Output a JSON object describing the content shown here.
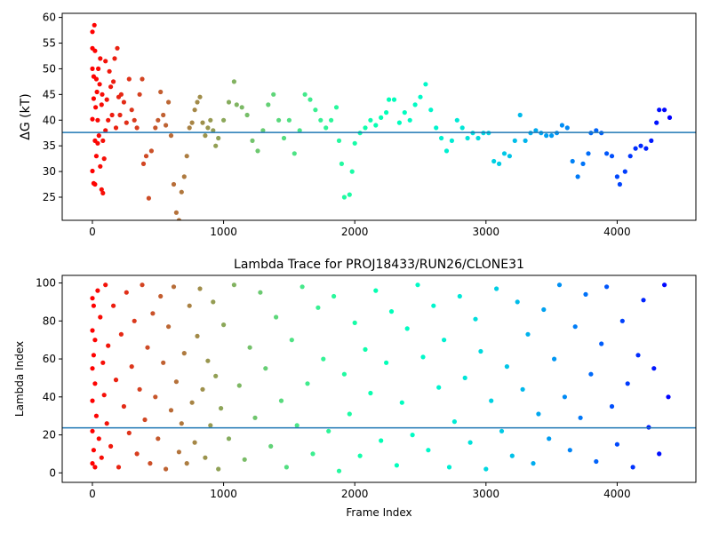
{
  "chart_data": [
    {
      "type": "scatter",
      "title": "",
      "xlabel": "",
      "ylabel": "ΔG (kT)",
      "xlim": [
        -230,
        4600
      ],
      "ylim": [
        20.5,
        60.8
      ],
      "xticks": [
        0,
        1000,
        2000,
        3000,
        4000
      ],
      "yticks": [
        25,
        30,
        35,
        40,
        45,
        50,
        55,
        60
      ],
      "hline": 37.6,
      "hline_color": "#1f77b4",
      "colormap": "rainbow (frame 0 red → frame 4400 violet)",
      "points": [
        [
          0,
          30.1
        ],
        [
          0,
          40.2
        ],
        [
          0,
          50.0
        ],
        [
          0,
          54.0
        ],
        [
          0,
          57.2
        ],
        [
          10,
          27.7
        ],
        [
          10,
          44.2
        ],
        [
          10,
          48.5
        ],
        [
          15,
          58.5
        ],
        [
          20,
          27.5
        ],
        [
          20,
          36.0
        ],
        [
          20,
          53.5
        ],
        [
          25,
          42.5
        ],
        [
          30,
          33.0
        ],
        [
          30,
          48.0
        ],
        [
          35,
          45.5
        ],
        [
          40,
          35.5
        ],
        [
          40,
          40.0
        ],
        [
          45,
          50.0
        ],
        [
          50,
          37.0
        ],
        [
          55,
          47.0
        ],
        [
          60,
          52.0
        ],
        [
          60,
          31.0
        ],
        [
          70,
          43.0
        ],
        [
          70,
          26.5
        ],
        [
          75,
          45.0
        ],
        [
          80,
          25.8
        ],
        [
          80,
          36.0
        ],
        [
          90,
          32.5
        ],
        [
          100,
          38.0
        ],
        [
          100,
          51.5
        ],
        [
          110,
          44.0
        ],
        [
          120,
          40.0
        ],
        [
          130,
          49.5
        ],
        [
          140,
          46.5
        ],
        [
          150,
          41.0
        ],
        [
          160,
          47.5
        ],
        [
          170,
          52.0
        ],
        [
          180,
          38.5
        ],
        [
          190,
          54.0
        ],
        [
          200,
          44.5
        ],
        [
          210,
          41.0
        ],
        [
          220,
          45.0
        ],
        [
          240,
          43.5
        ],
        [
          260,
          39.5
        ],
        [
          280,
          48.0
        ],
        [
          300,
          42.0
        ],
        [
          320,
          40.0
        ],
        [
          340,
          38.5
        ],
        [
          360,
          45.0
        ],
        [
          380,
          48.0
        ],
        [
          390,
          31.5
        ],
        [
          410,
          33.0
        ],
        [
          430,
          24.8
        ],
        [
          450,
          34.0
        ],
        [
          480,
          38.5
        ],
        [
          500,
          40.0
        ],
        [
          520,
          45.5
        ],
        [
          540,
          41.0
        ],
        [
          560,
          39.0
        ],
        [
          580,
          43.5
        ],
        [
          600,
          37.0
        ],
        [
          620,
          27.5
        ],
        [
          640,
          22.0
        ],
        [
          660,
          20.5
        ],
        [
          680,
          26.0
        ],
        [
          700,
          29.0
        ],
        [
          720,
          33.0
        ],
        [
          740,
          38.5
        ],
        [
          760,
          39.5
        ],
        [
          780,
          42.0
        ],
        [
          800,
          43.5
        ],
        [
          820,
          44.5
        ],
        [
          840,
          39.5
        ],
        [
          860,
          37.0
        ],
        [
          880,
          38.5
        ],
        [
          900,
          40.0
        ],
        [
          920,
          38.0
        ],
        [
          940,
          35.0
        ],
        [
          960,
          36.5
        ],
        [
          1000,
          40.0
        ],
        [
          1040,
          43.5
        ],
        [
          1080,
          47.5
        ],
        [
          1100,
          43.0
        ],
        [
          1140,
          42.5
        ],
        [
          1180,
          41.0
        ],
        [
          1220,
          36.0
        ],
        [
          1260,
          34.0
        ],
        [
          1300,
          38.0
        ],
        [
          1340,
          43.0
        ],
        [
          1380,
          45.0
        ],
        [
          1420,
          40.0
        ],
        [
          1460,
          36.5
        ],
        [
          1500,
          40.0
        ],
        [
          1540,
          33.5
        ],
        [
          1580,
          38.0
        ],
        [
          1620,
          45.0
        ],
        [
          1660,
          44.0
        ],
        [
          1700,
          42.0
        ],
        [
          1740,
          40.0
        ],
        [
          1780,
          38.5
        ],
        [
          1820,
          40.0
        ],
        [
          1860,
          42.5
        ],
        [
          1880,
          36.0
        ],
        [
          1900,
          31.5
        ],
        [
          1920,
          25.0
        ],
        [
          1960,
          25.5
        ],
        [
          1980,
          30.0
        ],
        [
          2000,
          35.5
        ],
        [
          2040,
          37.5
        ],
        [
          2080,
          38.5
        ],
        [
          2120,
          40.0
        ],
        [
          2160,
          39.0
        ],
        [
          2200,
          40.5
        ],
        [
          2240,
          41.5
        ],
        [
          2260,
          44.0
        ],
        [
          2300,
          44.0
        ],
        [
          2340,
          39.5
        ],
        [
          2380,
          41.5
        ],
        [
          2420,
          40.0
        ],
        [
          2460,
          43.0
        ],
        [
          2500,
          44.5
        ],
        [
          2540,
          47.0
        ],
        [
          2580,
          42.0
        ],
        [
          2620,
          38.5
        ],
        [
          2660,
          36.5
        ],
        [
          2700,
          34.0
        ],
        [
          2740,
          36.0
        ],
        [
          2780,
          40.0
        ],
        [
          2820,
          38.5
        ],
        [
          2860,
          36.5
        ],
        [
          2900,
          37.5
        ],
        [
          2940,
          36.5
        ],
        [
          2980,
          37.5
        ],
        [
          3020,
          37.5
        ],
        [
          3060,
          32.0
        ],
        [
          3100,
          31.5
        ],
        [
          3140,
          33.5
        ],
        [
          3180,
          33.0
        ],
        [
          3220,
          36.0
        ],
        [
          3260,
          41.0
        ],
        [
          3300,
          36.0
        ],
        [
          3340,
          37.5
        ],
        [
          3380,
          38.0
        ],
        [
          3420,
          37.5
        ],
        [
          3460,
          37.0
        ],
        [
          3500,
          37.0
        ],
        [
          3540,
          37.5
        ],
        [
          3580,
          39.0
        ],
        [
          3620,
          38.5
        ],
        [
          3660,
          32.0
        ],
        [
          3700,
          29.0
        ],
        [
          3740,
          31.5
        ],
        [
          3780,
          33.5
        ],
        [
          3800,
          37.5
        ],
        [
          3840,
          38.0
        ],
        [
          3880,
          37.5
        ],
        [
          3920,
          33.5
        ],
        [
          3960,
          33.0
        ],
        [
          4000,
          29.0
        ],
        [
          4020,
          27.5
        ],
        [
          4060,
          30.0
        ],
        [
          4100,
          33.0
        ],
        [
          4140,
          34.5
        ],
        [
          4180,
          35.0
        ],
        [
          4220,
          34.5
        ],
        [
          4260,
          36.0
        ],
        [
          4300,
          39.5
        ],
        [
          4320,
          42.0
        ],
        [
          4360,
          42.0
        ],
        [
          4400,
          40.5
        ]
      ]
    },
    {
      "type": "scatter",
      "title": "Lambda Trace for PROJ18433/RUN26/CLONE31",
      "xlabel": "Frame Index",
      "ylabel": "Lambda Index",
      "xlim": [
        -230,
        4600
      ],
      "ylim": [
        -5,
        104
      ],
      "xticks": [
        0,
        1000,
        2000,
        3000,
        4000
      ],
      "yticks": [
        0,
        20,
        40,
        60,
        80,
        100
      ],
      "hline": 23.7,
      "hline_color": "#1f77b4",
      "colormap": "rainbow (frame 0 red → frame 4400 violet)",
      "points": [
        [
          0,
          5
        ],
        [
          0,
          22
        ],
        [
          0,
          38
        ],
        [
          0,
          55
        ],
        [
          0,
          75
        ],
        [
          0,
          92
        ],
        [
          10,
          12
        ],
        [
          10,
          62
        ],
        [
          10,
          88
        ],
        [
          20,
          3
        ],
        [
          20,
          47
        ],
        [
          20,
          70
        ],
        [
          30,
          30
        ],
        [
          40,
          96
        ],
        [
          50,
          18
        ],
        [
          60,
          82
        ],
        [
          70,
          8
        ],
        [
          80,
          58
        ],
        [
          90,
          41
        ],
        [
          100,
          99
        ],
        [
          110,
          26
        ],
        [
          120,
          67
        ],
        [
          140,
          14
        ],
        [
          160,
          88
        ],
        [
          180,
          49
        ],
        [
          200,
          3
        ],
        [
          220,
          73
        ],
        [
          240,
          35
        ],
        [
          260,
          95
        ],
        [
          280,
          21
        ],
        [
          300,
          56
        ],
        [
          320,
          80
        ],
        [
          340,
          10
        ],
        [
          360,
          44
        ],
        [
          380,
          99
        ],
        [
          400,
          28
        ],
        [
          420,
          66
        ],
        [
          440,
          5
        ],
        [
          460,
          84
        ],
        [
          480,
          40
        ],
        [
          500,
          18
        ],
        [
          520,
          93
        ],
        [
          540,
          58
        ],
        [
          560,
          2
        ],
        [
          580,
          77
        ],
        [
          600,
          33
        ],
        [
          620,
          98
        ],
        [
          640,
          48
        ],
        [
          660,
          11
        ],
        [
          680,
          26
        ],
        [
          700,
          63
        ],
        [
          720,
          5
        ],
        [
          740,
          88
        ],
        [
          760,
          37
        ],
        [
          780,
          16
        ],
        [
          800,
          72
        ],
        [
          820,
          97
        ],
        [
          840,
          44
        ],
        [
          860,
          8
        ],
        [
          880,
          59
        ],
        [
          900,
          25
        ],
        [
          920,
          90
        ],
        [
          940,
          51
        ],
        [
          960,
          2
        ],
        [
          980,
          34
        ],
        [
          1000,
          78
        ],
        [
          1040,
          18
        ],
        [
          1080,
          99
        ],
        [
          1120,
          46
        ],
        [
          1160,
          7
        ],
        [
          1200,
          66
        ],
        [
          1240,
          29
        ],
        [
          1280,
          95
        ],
        [
          1320,
          55
        ],
        [
          1360,
          14
        ],
        [
          1400,
          82
        ],
        [
          1440,
          38
        ],
        [
          1480,
          3
        ],
        [
          1520,
          70
        ],
        [
          1560,
          25
        ],
        [
          1600,
          98
        ],
        [
          1640,
          47
        ],
        [
          1680,
          10
        ],
        [
          1720,
          87
        ],
        [
          1760,
          60
        ],
        [
          1800,
          22
        ],
        [
          1840,
          93
        ],
        [
          1880,
          1
        ],
        [
          1920,
          52
        ],
        [
          1960,
          31
        ],
        [
          2000,
          79
        ],
        [
          2040,
          9
        ],
        [
          2080,
          65
        ],
        [
          2120,
          42
        ],
        [
          2160,
          96
        ],
        [
          2200,
          17
        ],
        [
          2240,
          58
        ],
        [
          2280,
          85
        ],
        [
          2320,
          4
        ],
        [
          2360,
          37
        ],
        [
          2400,
          76
        ],
        [
          2440,
          20
        ],
        [
          2480,
          99
        ],
        [
          2520,
          61
        ],
        [
          2560,
          12
        ],
        [
          2600,
          88
        ],
        [
          2640,
          45
        ],
        [
          2680,
          70
        ],
        [
          2720,
          3
        ],
        [
          2760,
          27
        ],
        [
          2800,
          93
        ],
        [
          2840,
          50
        ],
        [
          2880,
          16
        ],
        [
          2920,
          81
        ],
        [
          2960,
          64
        ],
        [
          3000,
          2
        ],
        [
          3040,
          38
        ],
        [
          3080,
          97
        ],
        [
          3120,
          22
        ],
        [
          3160,
          56
        ],
        [
          3200,
          9
        ],
        [
          3240,
          90
        ],
        [
          3280,
          44
        ],
        [
          3320,
          73
        ],
        [
          3360,
          5
        ],
        [
          3400,
          31
        ],
        [
          3440,
          86
        ],
        [
          3480,
          18
        ],
        [
          3520,
          60
        ],
        [
          3560,
          99
        ],
        [
          3600,
          40
        ],
        [
          3640,
          12
        ],
        [
          3680,
          77
        ],
        [
          3720,
          29
        ],
        [
          3760,
          94
        ],
        [
          3800,
          52
        ],
        [
          3840,
          6
        ],
        [
          3880,
          68
        ],
        [
          3920,
          98
        ],
        [
          3960,
          35
        ],
        [
          4000,
          15
        ],
        [
          4040,
          80
        ],
        [
          4080,
          47
        ],
        [
          4120,
          3
        ],
        [
          4160,
          62
        ],
        [
          4200,
          91
        ],
        [
          4240,
          24
        ],
        [
          4280,
          55
        ],
        [
          4320,
          10
        ],
        [
          4360,
          99
        ],
        [
          4390,
          40
        ]
      ]
    }
  ]
}
